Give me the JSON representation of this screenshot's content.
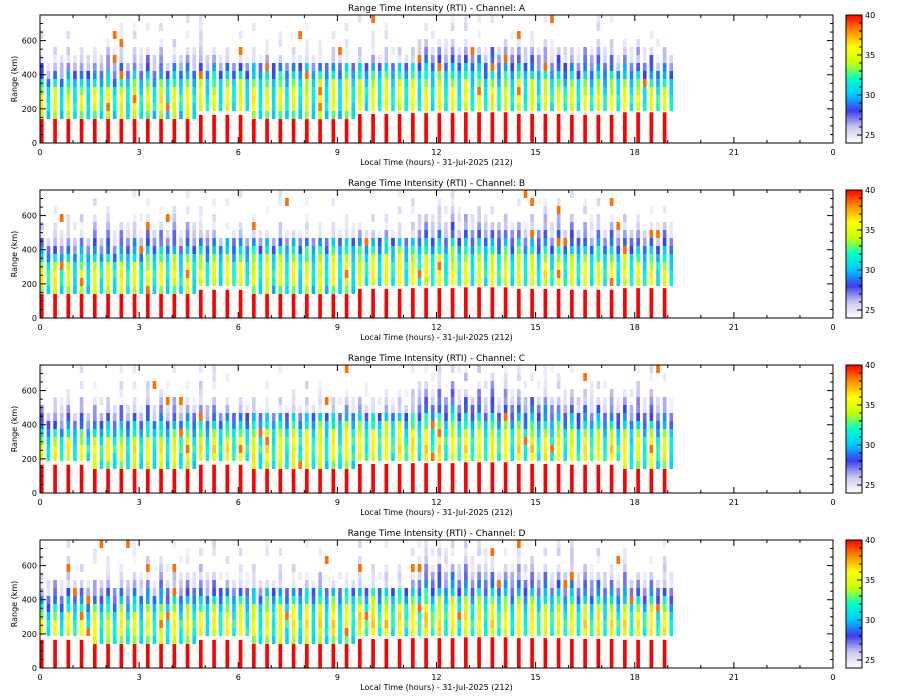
{
  "chart_data": [
    {
      "type": "heatmap",
      "title": "Range Time Intensity (RTI) - Channel: A",
      "xlabel": "Local Time (hours) - 31-Jul-2025 (212)",
      "ylabel": "Range (km)",
      "xlim": [
        0,
        24
      ],
      "ylim": [
        0,
        750
      ],
      "x_tick_labels": [
        "0",
        "3",
        "6",
        "9",
        "12",
        "15",
        "18",
        "21",
        "0"
      ],
      "y_tick_labels": [
        "0",
        "200",
        "400",
        "600"
      ],
      "colorbar_ticks": [
        "25",
        "30",
        "35",
        "40"
      ],
      "data_extent_hours": 19.25,
      "layer_top_km": [
        160,
        160,
        160,
        165,
        150,
        140,
        170,
        175,
        180,
        170,
        165,
        180
      ]
    },
    {
      "type": "heatmap",
      "title": "Range Time Intensity (RTI) - Channel: B",
      "xlabel": "Local Time (hours) - 31-Jul-2025 (212)",
      "ylabel": "Range (km)",
      "xlim": [
        0,
        24
      ],
      "ylim": [
        0,
        750
      ],
      "x_tick_labels": [
        "0",
        "3",
        "6",
        "9",
        "12",
        "15",
        "18",
        "21",
        "0"
      ],
      "y_tick_labels": [
        "0",
        "200",
        "400",
        "600"
      ],
      "colorbar_ticks": [
        "25",
        "30",
        "35",
        "40"
      ],
      "data_extent_hours": 19.25,
      "layer_top_km": [
        160,
        160,
        160,
        165,
        150,
        140,
        170,
        175,
        180,
        170,
        165,
        175
      ]
    },
    {
      "type": "heatmap",
      "title": "Range Time Intensity (RTI) - Channel: C",
      "xlabel": "Local Time (hours) - 31-Jul-2025 (212)",
      "ylabel": "Range (km)",
      "xlim": [
        0,
        24
      ],
      "ylim": [
        0,
        750
      ],
      "x_tick_labels": [
        "0",
        "3",
        "6",
        "9",
        "12",
        "15",
        "18",
        "21",
        "0"
      ],
      "y_tick_labels": [
        "0",
        "200",
        "400",
        "600"
      ],
      "colorbar_ticks": [
        "25",
        "30",
        "35",
        "40"
      ],
      "data_extent_hours": 19.25,
      "layer_top_km": [
        165,
        160,
        160,
        165,
        155,
        150,
        170,
        175,
        180,
        170,
        165,
        160
      ]
    },
    {
      "type": "heatmap",
      "title": "Range Time Intensity (RTI) - Channel: D",
      "xlabel": "Local Time (hours) - 31-Jul-2025 (212)",
      "ylabel": "Range (km)",
      "xlim": [
        0,
        24
      ],
      "ylim": [
        0,
        750
      ],
      "x_tick_labels": [
        "0",
        "3",
        "6",
        "9",
        "12",
        "15",
        "18",
        "21",
        "0"
      ],
      "y_tick_labels": [
        "0",
        "200",
        "400",
        "600"
      ],
      "colorbar_ticks": [
        "25",
        "30",
        "35",
        "40"
      ],
      "data_extent_hours": 19.25,
      "layer_top_km": [
        165,
        160,
        160,
        165,
        155,
        150,
        170,
        175,
        180,
        175,
        170,
        165
      ]
    }
  ],
  "colorbar": {
    "min": 24,
    "max": 40,
    "stops": [
      "#ffffff",
      "#c8c8f0",
      "#3c3cf0",
      "#00c8ff",
      "#00ffc8",
      "#c8ff00",
      "#ffff00",
      "#ff8c00",
      "#ff0000"
    ]
  }
}
